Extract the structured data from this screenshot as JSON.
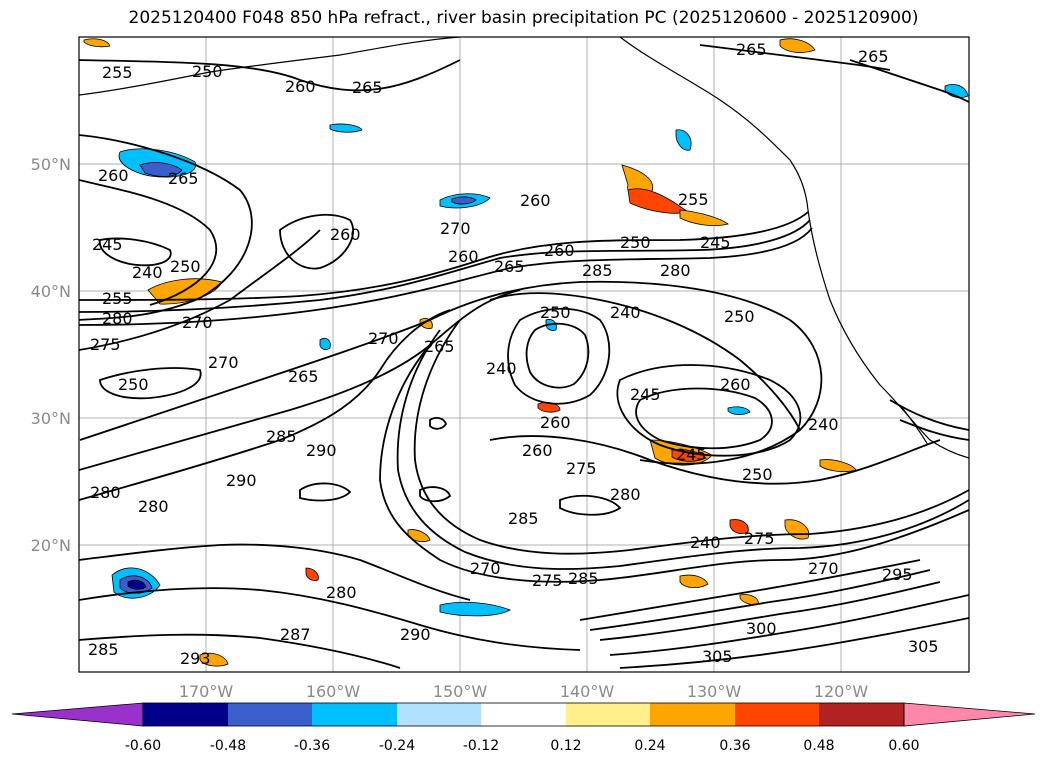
{
  "title": "2025120400 F048 850 hPa refract., river basin precipitation PC (2025120600 - 2025120900)",
  "latitude_labels": [
    "50°N",
    "40°N",
    "30°N",
    "20°N"
  ],
  "longitude_labels": [
    "170°W",
    "160°W",
    "150°W",
    "140°W",
    "130°W",
    "120°W"
  ],
  "colorbar": {
    "colors": [
      "#9932cc",
      "#00008b",
      "#3a5fcd",
      "#00bfff",
      "#b0e2ff",
      "#ffffff",
      "#fff08c",
      "#ffa500",
      "#ff4500",
      "#b22222",
      "#ff88aa"
    ],
    "tick_labels": [
      "-0.60",
      "-0.48",
      "-0.36",
      "-0.24",
      "-0.12",
      "0.12",
      "0.24",
      "0.36",
      "0.48",
      "0.60"
    ]
  },
  "contour_labels": [
    "255",
    "250",
    "260",
    "265",
    "265",
    "265",
    "260",
    "265",
    "260",
    "270",
    "260",
    "255",
    "250",
    "245",
    "245",
    "240",
    "250",
    "260",
    "265",
    "260",
    "285",
    "280",
    "255",
    "280",
    "270",
    "275",
    "250",
    "240",
    "250",
    "270",
    "265",
    "240",
    "270",
    "260",
    "250",
    "245",
    "265",
    "285",
    "290",
    "260",
    "275",
    "240",
    "245",
    "250",
    "280",
    "290",
    "280",
    "285",
    "280",
    "275",
    "285",
    "240",
    "270",
    "275",
    "280",
    "300",
    "270",
    "295",
    "305",
    "305",
    "290",
    "287",
    "285",
    "293",
    "260"
  ]
}
